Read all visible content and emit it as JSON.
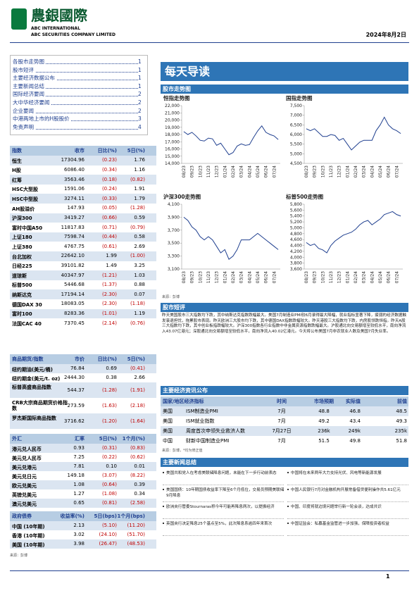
{
  "header": {
    "logo": "農銀國際",
    "company_en1": "ABC INTERNATIONAL",
    "company_en2": "ABC SECURITIES COMPANY LIMITED",
    "date": "2024年8月2日"
  },
  "toc": [
    {
      "title": "各股市走势图",
      "page": "1"
    },
    {
      "title": "股市短评",
      "page": "1"
    },
    {
      "title": "主要经济数据公布",
      "page": "1"
    },
    {
      "title": "主要新闻总结",
      "page": "1"
    },
    {
      "title": "国际经济要闻",
      "page": "2"
    },
    {
      "title": "大中华经济要闻",
      "page": "2"
    },
    {
      "title": "企业要闻",
      "page": "2"
    },
    {
      "title": "中港两地上市的H股股价",
      "page": "3"
    },
    {
      "title": "免责声明",
      "page": "4"
    }
  ],
  "tables": {
    "indices": {
      "header": [
        "指数",
        "收市",
        "日比(%)",
        "5日(%)"
      ],
      "rows": [
        [
          "恒生",
          "17304.96",
          "(0.23)",
          "1.76"
        ],
        [
          "H股",
          "6086.40",
          "(0.34)",
          "1.16"
        ],
        [
          "红筹",
          "3563.46",
          "(0.18)",
          "(0.82)"
        ],
        [
          "HSC大型股",
          "1591.06",
          "(0.24)",
          "1.91"
        ],
        [
          "HSC中型股",
          "3274.11",
          "(0.33)",
          "1.79"
        ],
        [
          "AH股溢价",
          "147.93",
          "(0.05)",
          "(1.28)"
        ],
        [
          "沪深300",
          "3419.27",
          "(0.66)",
          "0.59"
        ],
        [
          "富时中国A50",
          "11817.83",
          "(0.71)",
          "(0.79)"
        ],
        [
          "上证180",
          "7598.74",
          "(0.44)",
          "0.58"
        ],
        [
          "上证380",
          "4767.75",
          "(0.61)",
          "2.69"
        ],
        [
          "台北加权",
          "22642.10",
          "1.99",
          "(1.00)"
        ],
        [
          "日经225",
          "39101.82",
          "1.49",
          "3.25"
        ],
        [
          "道琼斯",
          "40347.97",
          "(1.21)",
          "1.03"
        ],
        [
          "标普500",
          "5446.68",
          "(1.37)",
          "0.88"
        ],
        [
          "纳斯达克",
          "17194.14",
          "(2.30)",
          "0.07"
        ],
        [
          "德国DAX 30",
          "18083.05",
          "(2.30)",
          "(1.18)"
        ],
        [
          "富时100",
          "8283.36",
          "(1.01)",
          "1.19"
        ],
        [
          "法国CAC 40",
          "7370.45",
          "(2.14)",
          "(0.76)"
        ]
      ]
    },
    "commodities": {
      "header": [
        "商品期货/指数",
        "市价",
        "日比(%)",
        "5日(%)"
      ],
      "rows": [
        [
          "纽约期油(美元/桶)",
          "76.84",
          "0.69",
          "(0.41)"
        ],
        [
          "纽约期金(美元/t. oz)",
          "2444.30",
          "0.38",
          "2.66"
        ],
        [
          "标普高盛商品指数",
          "544.37",
          "(1.28)",
          "(1.91)"
        ],
        [
          "CRB大宗商品期货价格指数",
          "273.59",
          "(1.63)",
          "(2.18)"
        ],
        [
          "罗杰斯国际商品指数",
          "3716.62",
          "(1.20)",
          "(1.64)"
        ]
      ]
    },
    "fx": {
      "header": [
        "外汇",
        "汇率",
        "5日(%)",
        "1个月(%)"
      ],
      "rows": [
        [
          "港元兑人民币",
          "0.93",
          "(0.31)",
          "(0.83)"
        ],
        [
          "美元兑人民币",
          "7.25",
          "(0.22)",
          "(0.62)"
        ],
        [
          "美元兑港元",
          "7.81",
          "0.10",
          "0.01"
        ],
        [
          "美元兑日元",
          "149.18",
          "(3.07)",
          "(8.22)"
        ],
        [
          "欧元兑美元",
          "1.08",
          "(0.64)",
          "0.39"
        ],
        [
          "英镑兑美元",
          "1.27",
          "(1.08)",
          "0.34"
        ],
        [
          "澳元兑美元",
          "0.65",
          "(0.81)",
          "(2.58)"
        ]
      ]
    },
    "bonds": {
      "header": [
        "政府债券",
        "收益率(%)",
        "5日(bps)",
        "1个月(bps)"
      ],
      "rows": [
        [
          "中国 (10年期)",
          "2.13",
          "(5.10)",
          "(11.20)"
        ],
        [
          "香港 (10年期)",
          "3.02",
          "(24.10)",
          "(51.70)"
        ],
        [
          "美国 (10年期)",
          "3.98",
          "(26.47)",
          "(48.53)"
        ]
      ]
    },
    "source": "来源：彭博"
  },
  "banner": "每天导读",
  "charts_section": "股市走势图",
  "chart_data": [
    {
      "type": "line",
      "title": "恒指走势图",
      "color": "#1f3f8f",
      "categories": [
        "08/23",
        null,
        "09/23",
        null,
        "10/23",
        null,
        "11/23",
        null,
        "12/23",
        null,
        "01/24",
        null,
        "02/24",
        null,
        "03/24",
        null,
        "04/24",
        null,
        "05/24",
        null,
        "06/24",
        null,
        "07/24",
        null
      ],
      "values": [
        18400,
        18000,
        18300,
        17800,
        17200,
        17100,
        17500,
        17400,
        16500,
        16800,
        16000,
        15200,
        15500,
        16400,
        16700,
        16500,
        16600,
        17600,
        18500,
        19200,
        18300,
        18000,
        17800,
        17300
      ],
      "ylim": [
        14000,
        22000
      ],
      "yticks": [
        {
          "value": 14000,
          "label": "14,000"
        },
        {
          "value": 15000,
          "label": "15,000"
        },
        {
          "value": 16000,
          "label": "16,000"
        },
        {
          "value": 17000,
          "label": "17,000"
        },
        {
          "value": 18000,
          "label": "18,000"
        },
        {
          "value": 19000,
          "label": "19,000"
        },
        {
          "value": 20000,
          "label": "20,000"
        },
        {
          "value": 21000,
          "label": "21,000"
        },
        {
          "value": 22000,
          "label": "22,000"
        }
      ]
    },
    {
      "type": "line",
      "title": "国指走势图",
      "color": "#1f3f8f",
      "categories": [
        "08/23",
        null,
        "09/23",
        null,
        "10/23",
        null,
        "11/23",
        null,
        "12/23",
        null,
        "01/24",
        null,
        "02/24",
        null,
        "03/24",
        null,
        "04/24",
        null,
        "05/24",
        null,
        "06/24",
        null,
        "07/24",
        null
      ],
      "values": [
        6300,
        6200,
        6300,
        6100,
        5900,
        5900,
        6000,
        5950,
        5700,
        5800,
        5500,
        5200,
        5400,
        5600,
        5700,
        5700,
        5700,
        6200,
        6500,
        6900,
        6500,
        6300,
        6200,
        6050
      ],
      "ylim": [
        4500,
        7500
      ],
      "yticks": [
        {
          "value": 4500,
          "label": "4,500"
        },
        {
          "value": 5000,
          "label": "5,000"
        },
        {
          "value": 5500,
          "label": "5,500"
        },
        {
          "value": 6000,
          "label": "6,000"
        },
        {
          "value": 6500,
          "label": "6,500"
        },
        {
          "value": 7000,
          "label": "7,000"
        },
        {
          "value": 7500,
          "label": "7,500"
        }
      ]
    },
    {
      "type": "line",
      "title": "沪深300走势图",
      "color": "#1f3f8f",
      "categories": [
        "08/23",
        null,
        "09/23",
        null,
        "10/23",
        null,
        "11/23",
        null,
        "12/23",
        null,
        "01/24",
        null,
        "02/24",
        null,
        "03/24",
        null,
        "04/24",
        null,
        "05/24",
        null,
        "06/24",
        null,
        "07/24",
        null
      ],
      "values": [
        3900,
        3850,
        3750,
        3700,
        3600,
        3550,
        3600,
        3550,
        3450,
        3350,
        3400,
        3250,
        3300,
        3400,
        3550,
        3550,
        3550,
        3600,
        3650,
        3600,
        3550,
        3500,
        3450,
        3400
      ],
      "ylim": [
        3100,
        4100
      ],
      "yticks": [
        {
          "value": 3100,
          "label": "3,100"
        },
        {
          "value": 3300,
          "label": "3,300"
        },
        {
          "value": 3500,
          "label": "3,500"
        },
        {
          "value": 3700,
          "label": "3,700"
        },
        {
          "value": 3900,
          "label": "3,900"
        },
        {
          "value": 4100,
          "label": "4,100"
        }
      ]
    },
    {
      "type": "line",
      "title": "标普500走势图",
      "color": "#1f3f8f",
      "categories": [
        "08/23",
        null,
        "09/23",
        null,
        "10/23",
        null,
        "11/23",
        null,
        "12/23",
        null,
        "01/24",
        null,
        "02/24",
        null,
        "03/24",
        null,
        "04/24",
        null,
        "05/24",
        null,
        "06/24",
        null,
        "07/24",
        null
      ],
      "values": [
        4500,
        4400,
        4450,
        4300,
        4250,
        4150,
        4400,
        4550,
        4650,
        4750,
        4800,
        4850,
        4950,
        5100,
        5200,
        5250,
        5100,
        5200,
        5300,
        5450,
        5500,
        5550,
        5450,
        5400
      ],
      "ylim": [
        3600,
        5800
      ],
      "yticks": [
        {
          "value": 3600,
          "label": "3,600"
        },
        {
          "value": 3800,
          "label": "3,800"
        },
        {
          "value": 4000,
          "label": "4,000"
        },
        {
          "value": 4200,
          "label": "4,200"
        },
        {
          "value": 4400,
          "label": "4,400"
        },
        {
          "value": 4600,
          "label": "4,600"
        },
        {
          "value": 4800,
          "label": "4,800"
        },
        {
          "value": 5000,
          "label": "5,000"
        },
        {
          "value": 5200,
          "label": "5,200"
        },
        {
          "value": 5400,
          "label": "5,400"
        },
        {
          "value": 5600,
          "label": "5,600"
        },
        {
          "value": 5800,
          "label": "5,800"
        }
      ]
    }
  ],
  "chart_source": "来源：彭博",
  "commentary": {
    "title": "股市短评",
    "text": "昨天美国股市三大指数均下跌，其中纳斯达克指数跌幅最大。美国7月制造业PMI较6月录得最大降幅，就业指标显著下降，疲弱的经济数据触发衰退担忧，拖累股市表现。昨天欧洲三大股市均下跌，其中德国DAX指数跌幅较大。昨天港股三大指数均下跌，内房股领跌恒指。昨天A股三大指数均下跌，其中创业板指跌幅较大。沪深300指数各行业指数中非金属资源指数跌幅最大。沪股通北向交易额增至较低水平，南向净流入43.07亿港元；深股通北向交易额增至较低水平，南向净流入40.02亿港元。今天将公布美国7月非农就业人数及美国7月失业率。"
  },
  "econ": {
    "title": "主要经济资讯公布",
    "header": [
      "国家/地区经济指标",
      "时间",
      "市场预期",
      "实际值",
      "前值"
    ],
    "rows": [
      [
        "美国",
        "ISM制造业PMI",
        "7月",
        "48.8",
        "46.8",
        "48.5"
      ],
      [
        "美国",
        "ISM就业指数",
        "7月",
        "49.2",
        "43.4",
        "49.3"
      ],
      [
        "美国",
        "周度首次申领失业救济人数",
        "7月27日",
        "236k",
        "249k",
        "235k"
      ],
      [
        "中国",
        "财新中国制造业PMI",
        "7月",
        "51.5",
        "49.8",
        "51.8"
      ]
    ],
    "source": "来源：彭博，*均为修正值"
  },
  "news": {
    "title": "主要新闻总结",
    "items": [
      "美国共和党人在考虑美联储降息问题，未能在下一步行动前表态",
      "美国国债：10年期国债收益率下降至6个月低位，交易员预期美联储9月降息",
      "欧洲央行管委Stournaras称今年可能再降息两次，以提振经济",
      "英国央行决定降息25个基点至5%，此次降息系逾四年来首次",
      "中国将在未来两年大力支持光伏、风电等新能源发展",
      "中国人民银行7月对金融机构开展常备借贷便利操作共5.61亿元",
      "中国、印度将就边境问题举行新一轮会谈，达成共识",
      "中国证监会：私募基金监管进一步加强，保障投资者权益"
    ]
  },
  "page_number": "1"
}
